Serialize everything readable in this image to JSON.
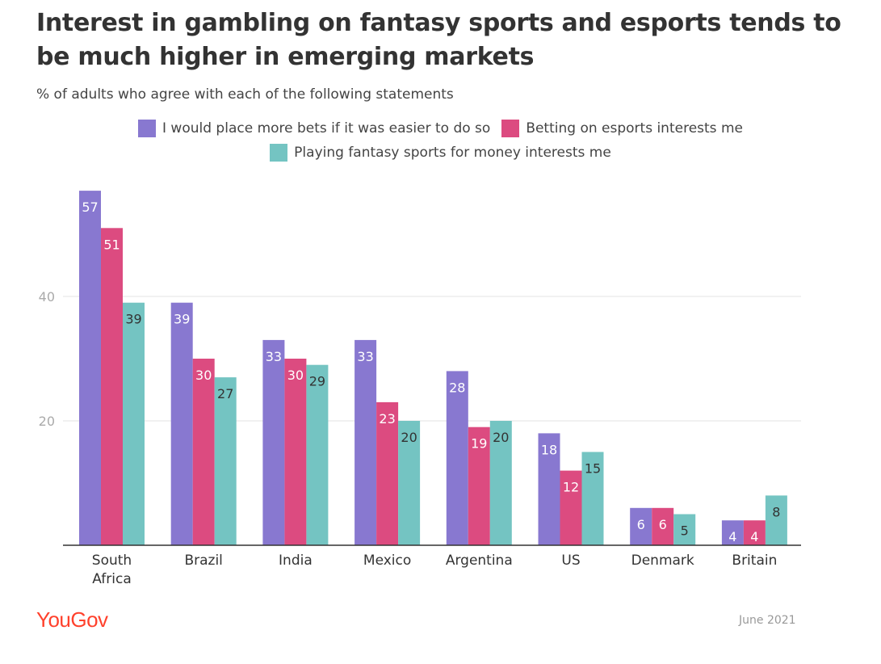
{
  "title": "Interest in gambling on fantasy sports and esports tends to be much higher in emerging markets",
  "subtitle": "% of adults who agree with each of the following statements",
  "footer": {
    "logo": "YouGov",
    "date": "June 2021"
  },
  "colors": {
    "series1": "#8878d0",
    "series2": "#dc4b80",
    "series3": "#74c4c2"
  },
  "chart_data": {
    "type": "bar",
    "categories": [
      "South Africa",
      "Brazil",
      "India",
      "Mexico",
      "Argentina",
      "US",
      "Denmark",
      "Britain"
    ],
    "series": [
      {
        "name": "I would place more bets if it was easier to do so",
        "values": [
          57,
          39,
          33,
          33,
          28,
          18,
          6,
          4
        ]
      },
      {
        "name": "Betting on esports interests me",
        "values": [
          51,
          30,
          30,
          23,
          19,
          12,
          6,
          4
        ]
      },
      {
        "name": "Playing fantasy sports for money interests me",
        "values": [
          39,
          27,
          29,
          20,
          20,
          15,
          5,
          8
        ]
      }
    ],
    "yticks": [
      20,
      40
    ],
    "ylim": [
      0,
      60
    ],
    "grid": true,
    "legend": "top-center"
  }
}
